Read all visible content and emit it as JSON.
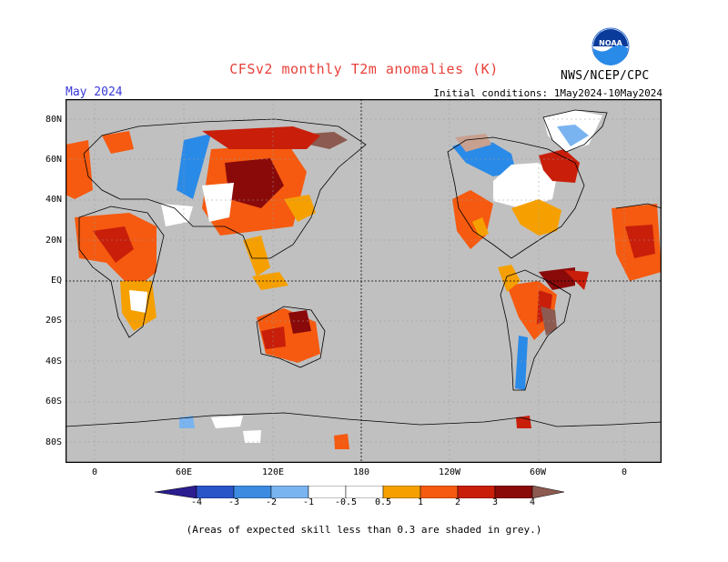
{
  "title": "CFSv2 monthly T2m anomalies (K)",
  "period": "May 2024",
  "initial_conditions": "Initial conditions: 1May2024-10May2024",
  "agency": "NWS/NCEP/CPC",
  "logo_text": "NOAA",
  "lat_labels": [
    "80N",
    "60N",
    "40N",
    "20N",
    "EQ",
    "20S",
    "40S",
    "60S",
    "80S"
  ],
  "lon_labels": [
    "0",
    "60E",
    "120E",
    "180",
    "120W",
    "60W",
    "0"
  ],
  "colorbar": {
    "ticks": [
      "-4",
      "-3",
      "-2",
      "-1",
      "-0.5",
      "0.5",
      "1",
      "2",
      "3",
      "4"
    ],
    "colors": [
      "#2b1d8f",
      "#2a55c8",
      "#3d8be0",
      "#7ab4f0",
      "#ffffff",
      "#f5a000",
      "#f55a10",
      "#c81e0a",
      "#8a0a0a",
      "#c8a090",
      "#8c5a50"
    ]
  },
  "note": "(Areas of expected skill less than 0.3 are shaded in grey.)",
  "colors": {
    "title": "#e8403a",
    "period": "#3a3ad8",
    "land_gray": "#c0c0c0"
  }
}
